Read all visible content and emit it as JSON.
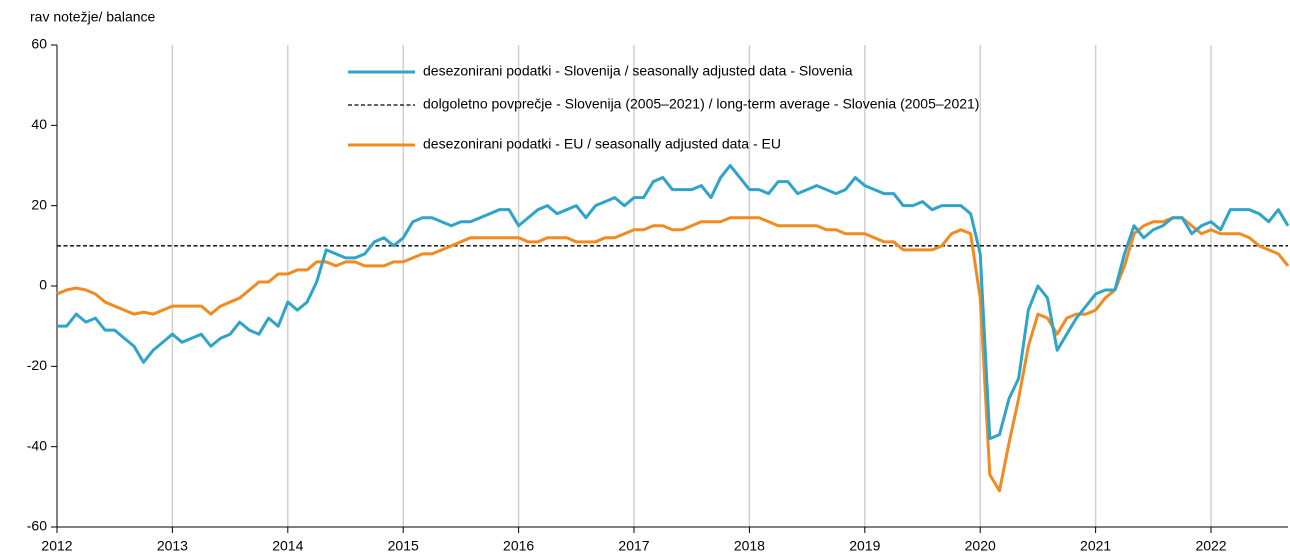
{
  "chart_data": {
    "type": "line",
    "y_axis_label": "rav notežje/ balance",
    "xlim": [
      2012,
      2022.667
    ],
    "xticks": [
      2012,
      2013,
      2014,
      2015,
      2016,
      2017,
      2018,
      2019,
      2020,
      2021,
      2022
    ],
    "ylim": [
      -60,
      60
    ],
    "yticks": [
      -60,
      -40,
      -20,
      0,
      20,
      40,
      60
    ],
    "grid": true,
    "x": [
      2012,
      2012.083,
      2012.167,
      2012.25,
      2012.333,
      2012.417,
      2012.5,
      2012.583,
      2012.667,
      2012.75,
      2012.833,
      2012.917,
      2013,
      2013.083,
      2013.167,
      2013.25,
      2013.333,
      2013.417,
      2013.5,
      2013.583,
      2013.667,
      2013.75,
      2013.833,
      2013.917,
      2014,
      2014.083,
      2014.167,
      2014.25,
      2014.333,
      2014.417,
      2014.5,
      2014.583,
      2014.667,
      2014.75,
      2014.833,
      2014.917,
      2015,
      2015.083,
      2015.167,
      2015.25,
      2015.333,
      2015.417,
      2015.5,
      2015.583,
      2015.667,
      2015.75,
      2015.833,
      2015.917,
      2016,
      2016.083,
      2016.167,
      2016.25,
      2016.333,
      2016.417,
      2016.5,
      2016.583,
      2016.667,
      2016.75,
      2016.833,
      2016.917,
      2017,
      2017.083,
      2017.167,
      2017.25,
      2017.333,
      2017.417,
      2017.5,
      2017.583,
      2017.667,
      2017.75,
      2017.833,
      2017.917,
      2018,
      2018.083,
      2018.167,
      2018.25,
      2018.333,
      2018.417,
      2018.5,
      2018.583,
      2018.667,
      2018.75,
      2018.833,
      2018.917,
      2019,
      2019.083,
      2019.167,
      2019.25,
      2019.333,
      2019.417,
      2019.5,
      2019.583,
      2019.667,
      2019.75,
      2019.833,
      2019.917,
      2020,
      2020.083,
      2020.167,
      2020.25,
      2020.333,
      2020.417,
      2020.5,
      2020.583,
      2020.667,
      2020.75,
      2020.833,
      2020.917,
      2021,
      2021.083,
      2021.167,
      2021.25,
      2021.333,
      2021.417,
      2021.5,
      2021.583,
      2021.667,
      2021.75,
      2021.833,
      2021.917,
      2022,
      2022.083,
      2022.167,
      2022.25,
      2022.333,
      2022.417,
      2022.5,
      2022.583,
      2022.667
    ],
    "series": [
      {
        "name": "desezonirani podatki - Slovenija / seasonally adjusted data - Slovenia",
        "color": "#2fa4c8",
        "values": [
          -10,
          -10,
          -7,
          -9,
          -8,
          -11,
          -11,
          -13,
          -15,
          -19,
          -16,
          -14,
          -12,
          -14,
          -13,
          -12,
          -15,
          -13,
          -12,
          -9,
          -11,
          -12,
          -8,
          -10,
          -4,
          -6,
          -4,
          1,
          9,
          8,
          7,
          7,
          8,
          11,
          12,
          10,
          12,
          16,
          17,
          17,
          16,
          15,
          16,
          16,
          17,
          18,
          19,
          19,
          15,
          17,
          19,
          20,
          18,
          19,
          20,
          17,
          20,
          21,
          22,
          20,
          22,
          22,
          26,
          27,
          24,
          24,
          24,
          25,
          22,
          27,
          30,
          27,
          24,
          24,
          23,
          26,
          26,
          23,
          24,
          25,
          24,
          23,
          24,
          27,
          25,
          24,
          23,
          23,
          20,
          20,
          21,
          19,
          20,
          20,
          20,
          18,
          8,
          -38,
          -37,
          -28,
          -23,
          -6,
          0,
          -3,
          -16,
          -12,
          -8,
          -5,
          -2,
          -1,
          -1,
          8,
          15,
          12,
          14,
          15,
          17,
          17,
          13,
          15,
          16,
          14,
          19,
          19,
          19,
          18,
          16,
          19,
          15
        ]
      },
      {
        "name": "desezonirani podatki - EU / seasonally adjusted data - EU",
        "color": "#f28a1f",
        "values": [
          -2,
          -1,
          -0.5,
          -1,
          -2,
          -4,
          -5,
          -6,
          -7,
          -6.5,
          -7,
          -6,
          -5,
          -5,
          -5,
          -5,
          -7,
          -5,
          -4,
          -3,
          -1,
          1,
          1,
          3,
          3,
          4,
          4,
          6,
          6,
          5,
          6,
          6,
          5,
          5,
          5,
          6,
          6,
          7,
          8,
          8,
          9,
          10,
          11,
          12,
          12,
          12,
          12,
          12,
          12,
          11,
          11,
          12,
          12,
          12,
          11,
          11,
          11,
          12,
          12,
          13,
          14,
          14,
          15,
          15,
          14,
          14,
          15,
          16,
          16,
          16,
          17,
          17,
          17,
          17,
          16,
          15,
          15,
          15,
          15,
          15,
          14,
          14,
          13,
          13,
          13,
          12,
          11,
          11,
          9,
          9,
          9,
          9,
          10,
          13,
          14,
          13,
          -3,
          -47,
          -51,
          -39,
          -28,
          -15,
          -7,
          -8,
          -12,
          -8,
          -7,
          -7,
          -6,
          -3,
          -1,
          5,
          13,
          15,
          16,
          16,
          17,
          17,
          15,
          13,
          14,
          13,
          13,
          13,
          12,
          10,
          9,
          8,
          5
        ]
      }
    ],
    "reference_line": {
      "name": "dolgoletno povprečje - Slovenija (2005–2021) / long-term average - Slovenia (2005–2021)",
      "value": 10,
      "color": "#000000"
    }
  }
}
